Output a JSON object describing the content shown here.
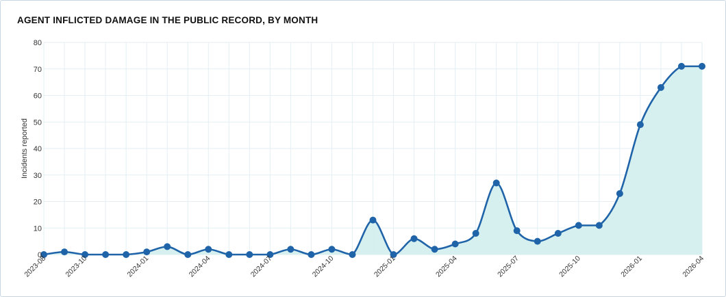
{
  "chart_data": {
    "type": "area",
    "title": "AGENT INFLICTED DAMAGE IN THE PUBLIC RECORD, BY MONTH",
    "xlabel": "",
    "ylabel": "Incidents reported",
    "ylim": [
      0,
      80
    ],
    "y_ticks": [
      0,
      10,
      20,
      30,
      40,
      50,
      60,
      70,
      80
    ],
    "x": [
      "2023-08",
      "2023-09",
      "2023-10",
      "2023-11",
      "2023-12",
      "2024-01",
      "2024-02",
      "2024-03",
      "2024-04",
      "2024-05",
      "2024-06",
      "2024-07",
      "2024-08",
      "2024-09",
      "2024-10",
      "2024-11",
      "2024-12",
      "2025-01",
      "2025-02",
      "2025-03",
      "2025-04",
      "2025-05",
      "2025-06",
      "2025-07",
      "2025-08",
      "2025-09",
      "2025-10",
      "2025-11",
      "2025-12",
      "2026-01",
      "2026-02",
      "2026-03",
      "2026-04"
    ],
    "x_tick_labels": [
      "2023-08",
      "2023-10",
      "2024-01",
      "2024-04",
      "2024-07",
      "2024-10",
      "2025-01",
      "2025-04",
      "2025-07",
      "2025-10",
      "2026-01",
      "2026-04"
    ],
    "series": [
      {
        "values": [
          0,
          1,
          0,
          0,
          0,
          1,
          3,
          0,
          2,
          0,
          0,
          0,
          2,
          0,
          2,
          0,
          13,
          0,
          6,
          2,
          4,
          8,
          27,
          9,
          5,
          8,
          11,
          11,
          23,
          49,
          63,
          71,
          71
        ]
      }
    ],
    "grid": true,
    "colors": {
      "line": "#1f63a8",
      "fill": "#d4eeee",
      "grid": "#e3eff3",
      "point": "#1f63a8"
    }
  }
}
